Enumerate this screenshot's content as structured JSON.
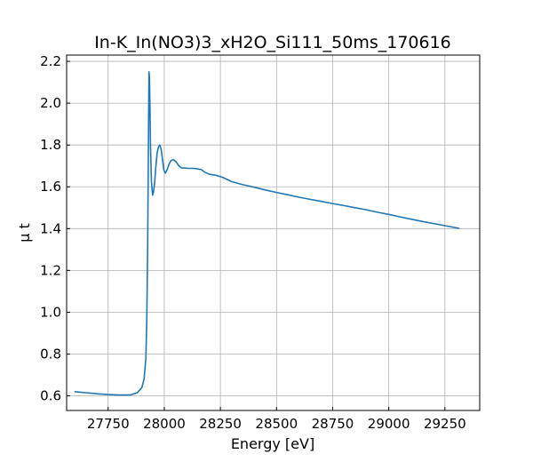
{
  "chart_data": {
    "type": "line",
    "title": "In-K_In(NO3)3_xH2O_Si111_50ms_170616",
    "xlabel": "Energy [eV]",
    "ylabel": "μ t",
    "xlim": [
      27565,
      29405
    ],
    "ylim": [
      0.53,
      2.23
    ],
    "xticks": [
      27750,
      28000,
      28250,
      28500,
      28750,
      29000,
      29250
    ],
    "yticks": [
      0.6,
      0.8,
      1.0,
      1.2,
      1.4,
      1.6,
      1.8,
      2.0,
      2.2
    ],
    "ytick_labels": [
      "0.6",
      "0.8",
      "1.0",
      "1.2",
      "1.4",
      "1.6",
      "1.8",
      "2.0",
      "2.2"
    ],
    "grid": true,
    "series_color": "#1f77b4",
    "series": [
      {
        "name": "",
        "x": [
          27600,
          27650,
          27700,
          27750,
          27800,
          27850,
          27880,
          27900,
          27910,
          27918,
          27922,
          27926,
          27929,
          27932,
          27934,
          27936,
          27939,
          27943,
          27948,
          27952,
          27957,
          27962,
          27968,
          27974,
          27980,
          27986,
          27992,
          27998,
          28005,
          28012,
          28020,
          28030,
          28040,
          28052,
          28065,
          28078,
          28090,
          28110,
          28130,
          28150,
          28165,
          28180,
          28200,
          28230,
          28260,
          28280,
          28300,
          28350,
          28400,
          28450,
          28500,
          28550,
          28600,
          28650,
          28700,
          28750,
          28800,
          28850,
          28900,
          28950,
          29000,
          29050,
          29100,
          29150,
          29200,
          29250,
          29300,
          29315
        ],
        "y": [
          0.62,
          0.615,
          0.61,
          0.606,
          0.604,
          0.605,
          0.615,
          0.64,
          0.68,
          0.78,
          0.95,
          1.3,
          1.75,
          2.15,
          2.12,
          1.98,
          1.78,
          1.62,
          1.56,
          1.575,
          1.62,
          1.69,
          1.76,
          1.79,
          1.8,
          1.78,
          1.73,
          1.68,
          1.665,
          1.68,
          1.705,
          1.725,
          1.73,
          1.72,
          1.7,
          1.69,
          1.69,
          1.688,
          1.688,
          1.685,
          1.682,
          1.67,
          1.66,
          1.655,
          1.645,
          1.635,
          1.625,
          1.61,
          1.598,
          1.585,
          1.573,
          1.562,
          1.55,
          1.54,
          1.53,
          1.52,
          1.51,
          1.5,
          1.49,
          1.478,
          1.468,
          1.456,
          1.445,
          1.434,
          1.424,
          1.414,
          1.404,
          1.401
        ]
      }
    ]
  }
}
